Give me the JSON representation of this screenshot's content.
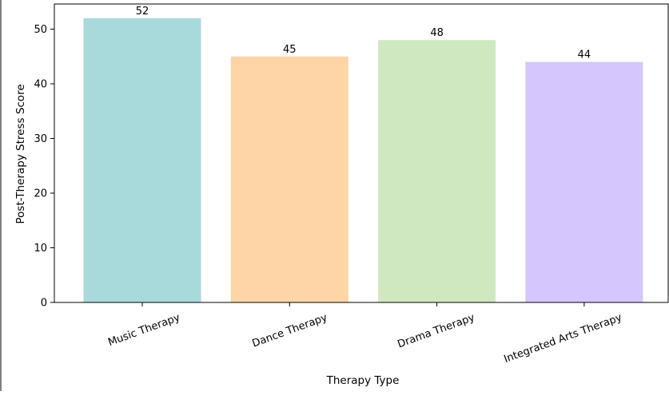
{
  "chart_data": {
    "type": "bar",
    "title": "",
    "xlabel": "Therapy Type",
    "ylabel": "Post-Therapy Stress Score",
    "categories": [
      "Music Therapy",
      "Dance Therapy",
      "Drama Therapy",
      "Integrated Arts Therapy"
    ],
    "values": [
      52,
      45,
      48,
      44
    ],
    "colors": [
      "#a8dadc",
      "#fdd5a6",
      "#d0e8c0",
      "#d6c6fe"
    ],
    "ylim": [
      0,
      54.6
    ],
    "yticks": [
      0,
      10,
      20,
      30,
      40,
      50
    ],
    "grid": false,
    "legend": "none"
  }
}
